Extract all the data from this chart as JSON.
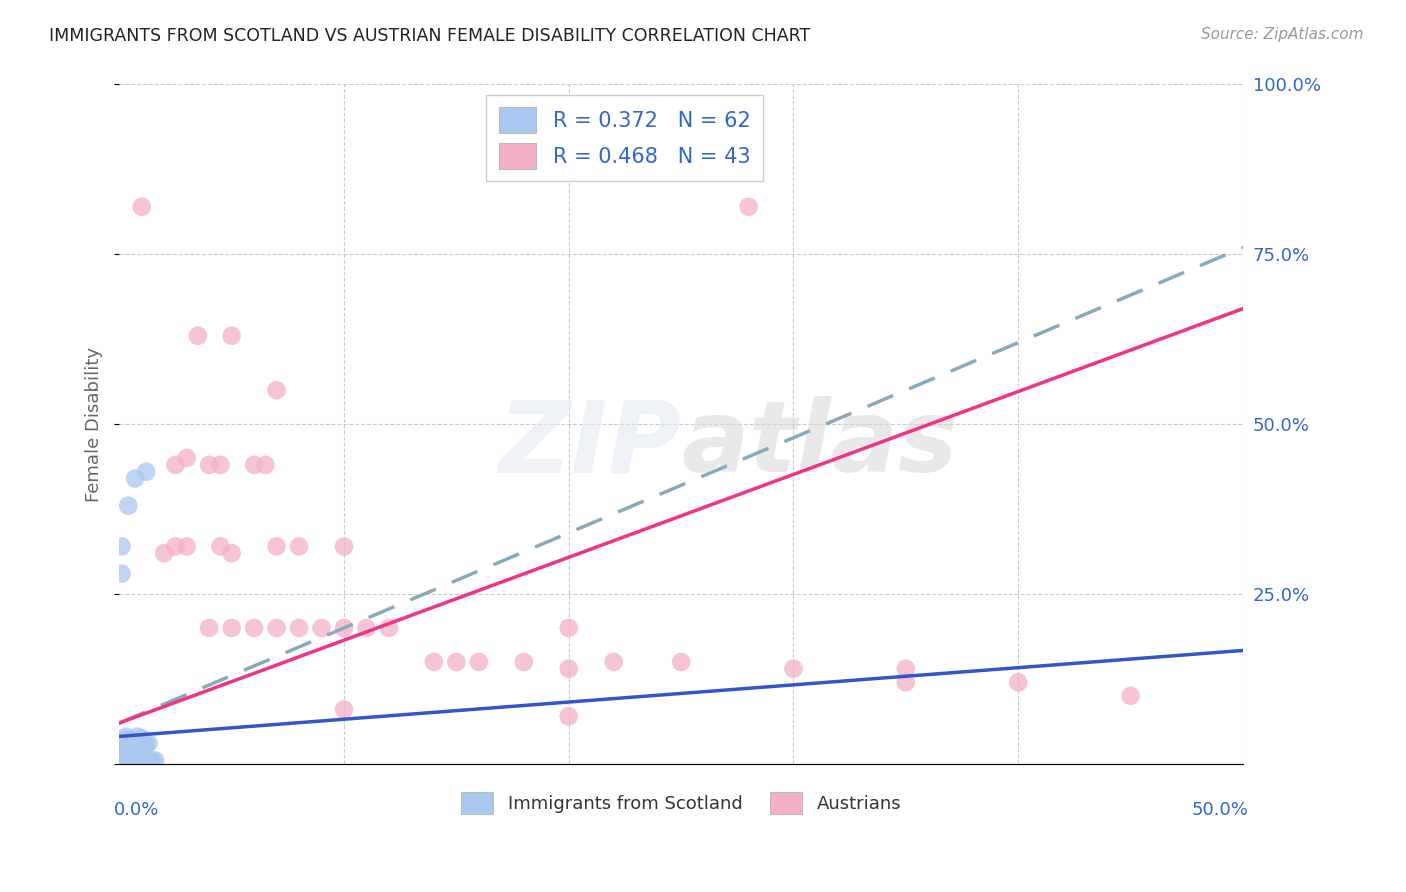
{
  "title": "IMMIGRANTS FROM SCOTLAND VS AUSTRIAN FEMALE DISABILITY CORRELATION CHART",
  "source": "Source: ZipAtlas.com",
  "ylabel": "Female Disability",
  "ytick_vals": [
    0.0,
    0.25,
    0.5,
    0.75,
    1.0
  ],
  "ytick_labels": [
    "",
    "25.0%",
    "50.0%",
    "75.0%",
    "100.0%"
  ],
  "xlim": [
    0.0,
    0.5
  ],
  "ylim": [
    0.0,
    1.0
  ],
  "legend_label1": "Immigrants from Scotland",
  "legend_label2": "Austrians",
  "legend_r1": "R = 0.372",
  "legend_n1": "N = 62",
  "legend_r2": "R = 0.468",
  "legend_n2": "N = 43",
  "blue_color": "#a8c8f0",
  "pink_color": "#f4b0c8",
  "blue_line_color": "#3355cc",
  "pink_line_color": "#ee3388",
  "dashed_line_color": "#88aabb",
  "grid_color": "#cccccc",
  "title_color": "#222222",
  "axis_label_color": "#3366cc",
  "source_color": "#999999",
  "scatter_blue": [
    [
      0.0005,
      0.005
    ],
    [
      0.001,
      0.008
    ],
    [
      0.0015,
      0.003
    ],
    [
      0.001,
      0.012
    ],
    [
      0.002,
      0.006
    ],
    [
      0.0025,
      0.01
    ],
    [
      0.003,
      0.004
    ],
    [
      0.002,
      0.015
    ],
    [
      0.003,
      0.018
    ],
    [
      0.004,
      0.008
    ],
    [
      0.003,
      0.022
    ],
    [
      0.004,
      0.016
    ],
    [
      0.005,
      0.012
    ],
    [
      0.004,
      0.025
    ],
    [
      0.005,
      0.018
    ],
    [
      0.006,
      0.02
    ],
    [
      0.006,
      0.028
    ],
    [
      0.007,
      0.016
    ],
    [
      0.007,
      0.022
    ],
    [
      0.008,
      0.018
    ],
    [
      0.008,
      0.03
    ],
    [
      0.009,
      0.02
    ],
    [
      0.009,
      0.025
    ],
    [
      0.01,
      0.022
    ],
    [
      0.01,
      0.032
    ],
    [
      0.011,
      0.025
    ],
    [
      0.012,
      0.028
    ],
    [
      0.013,
      0.03
    ],
    [
      0.0005,
      0.002
    ],
    [
      0.001,
      0.001
    ],
    [
      0.0015,
      0.005
    ],
    [
      0.002,
      0.002
    ],
    [
      0.0025,
      0.004
    ],
    [
      0.003,
      0.001
    ],
    [
      0.004,
      0.003
    ],
    [
      0.005,
      0.002
    ],
    [
      0.006,
      0.004
    ],
    [
      0.007,
      0.003
    ],
    [
      0.008,
      0.005
    ],
    [
      0.009,
      0.002
    ],
    [
      0.01,
      0.004
    ],
    [
      0.011,
      0.003
    ],
    [
      0.012,
      0.005
    ],
    [
      0.013,
      0.002
    ],
    [
      0.014,
      0.004
    ],
    [
      0.015,
      0.003
    ],
    [
      0.016,
      0.005
    ],
    [
      0.0005,
      0.0
    ],
    [
      0.001,
      0.0
    ],
    [
      0.002,
      0.0
    ],
    [
      0.003,
      0.0
    ],
    [
      0.001,
      0.28
    ],
    [
      0.007,
      0.42
    ],
    [
      0.012,
      0.43
    ],
    [
      0.001,
      0.32
    ],
    [
      0.004,
      0.38
    ],
    [
      0.0005,
      0.015
    ],
    [
      0.002,
      0.035
    ],
    [
      0.003,
      0.04
    ],
    [
      0.005,
      0.035
    ],
    [
      0.008,
      0.04
    ],
    [
      0.01,
      0.038
    ]
  ],
  "scatter_pink": [
    [
      0.01,
      0.82
    ],
    [
      0.035,
      0.63
    ],
    [
      0.02,
      0.31
    ],
    [
      0.04,
      0.44
    ],
    [
      0.03,
      0.45
    ],
    [
      0.05,
      0.63
    ],
    [
      0.06,
      0.44
    ],
    [
      0.07,
      0.55
    ],
    [
      0.025,
      0.44
    ],
    [
      0.045,
      0.44
    ],
    [
      0.065,
      0.44
    ],
    [
      0.03,
      0.32
    ],
    [
      0.05,
      0.31
    ],
    [
      0.07,
      0.32
    ],
    [
      0.04,
      0.2
    ],
    [
      0.06,
      0.2
    ],
    [
      0.08,
      0.2
    ],
    [
      0.1,
      0.2
    ],
    [
      0.12,
      0.2
    ],
    [
      0.14,
      0.15
    ],
    [
      0.16,
      0.15
    ],
    [
      0.18,
      0.15
    ],
    [
      0.2,
      0.14
    ],
    [
      0.22,
      0.15
    ],
    [
      0.025,
      0.32
    ],
    [
      0.045,
      0.32
    ],
    [
      0.08,
      0.32
    ],
    [
      0.1,
      0.32
    ],
    [
      0.05,
      0.2
    ],
    [
      0.07,
      0.2
    ],
    [
      0.09,
      0.2
    ],
    [
      0.11,
      0.2
    ],
    [
      0.3,
      0.14
    ],
    [
      0.35,
      0.14
    ],
    [
      0.4,
      0.12
    ],
    [
      0.45,
      0.1
    ],
    [
      0.2,
      0.2
    ],
    [
      0.25,
      0.15
    ],
    [
      0.15,
      0.15
    ],
    [
      0.28,
      0.82
    ],
    [
      0.1,
      0.08
    ],
    [
      0.2,
      0.07
    ],
    [
      0.35,
      0.12
    ]
  ]
}
